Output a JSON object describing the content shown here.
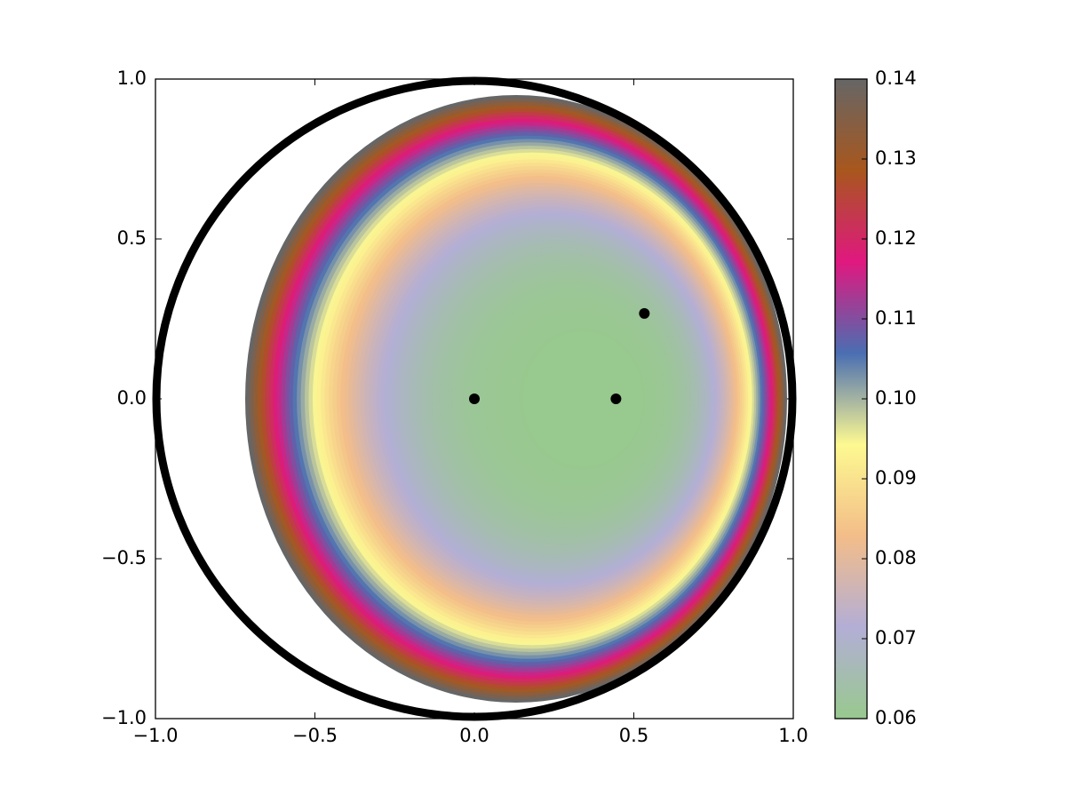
{
  "chart_data": {
    "type": "contour",
    "xlim": [
      -1,
      1
    ],
    "ylim": [
      -1,
      1
    ],
    "xticks": [
      {
        "value": -1,
        "label": "−1.0"
      },
      {
        "value": -0.5,
        "label": "−0.5"
      },
      {
        "value": 0,
        "label": "0.0"
      },
      0.5,
      {
        "value": 1,
        "label": "1.0"
      }
    ],
    "yticks": [
      {
        "value": -1,
        "label": "−1.0"
      },
      {
        "value": -0.5,
        "label": "−0.5"
      },
      {
        "value": 0,
        "label": "0.0"
      },
      0.5,
      {
        "value": 1,
        "label": "1.0"
      }
    ],
    "x": [
      0,
      0.444,
      0.533
    ],
    "values": [
      0,
      0,
      0.267
    ],
    "color": "#000000",
    "colorbar": {
      "lim": [
        0.06,
        0.14
      ],
      "ticks": [
        0.06,
        0.07,
        0.08,
        0.09,
        {
          "value": 0.1,
          "label": "0.10"
        },
        0.11,
        0.12,
        0.13,
        0.14
      ],
      "colormap": [
        "#98c98e",
        "#b3aed6",
        "#f3bd89",
        "#fdf991",
        "#4a6eb2",
        "#e0187f",
        "#a8571d",
        "#666666"
      ]
    }
  }
}
